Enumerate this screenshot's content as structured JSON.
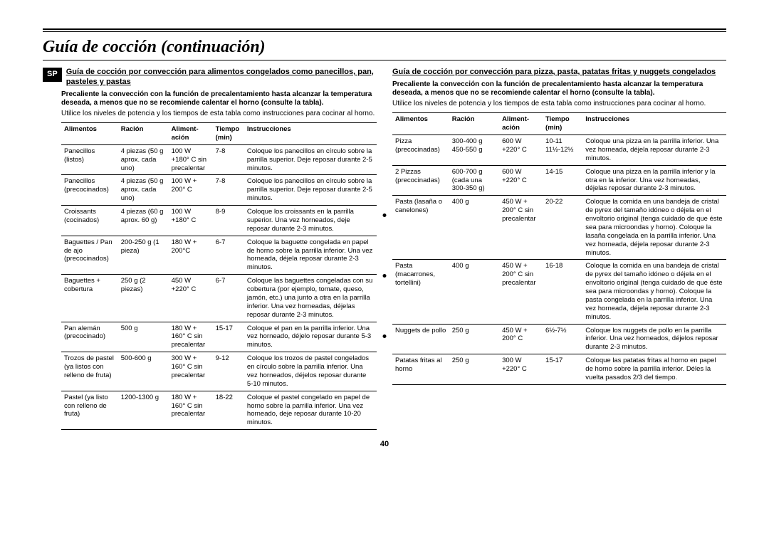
{
  "title": "Guía de cocción (continuación)",
  "spTag": "SP",
  "pageNum": "40",
  "left": {
    "heading": "Guía de cocción por convección para alimentos congelados como panecillos, pan, pasteles y pastas",
    "introBold": "Precaliente la convección con la función de precalentamiento hasta alcanzar la temperatura deseada, a menos que no se recomiende calentar el horno (consulte la tabla).",
    "intro": "Utilice los niveles de potencia y los tiempos de esta tabla como instrucciones para cocinar al horno.",
    "headers": {
      "c1": "Alimentos",
      "c2": "Ración",
      "c3": "Aliment-ación",
      "c4": "Tiempo (min)",
      "c5": "Instrucciones"
    },
    "rows": [
      {
        "c1": "Panecillos (listos)",
        "c2": "4 piezas (50 g aprox. cada uno)",
        "c3": "100 W +180° C sin precalentar",
        "c4": "7-8",
        "c5": "Coloque los panecillos en círculo sobre la parrilla superior. Deje reposar durante 2-5 minutos."
      },
      {
        "c1": "Panecillos (precocinados)",
        "c2": "4 piezas (50 g aprox. cada uno)",
        "c3": "100 W + 200° C",
        "c4": "7-8",
        "c5": "Coloque los panecillos en círculo sobre la parrilla superior. Deje reposar durante 2-5 minutos."
      },
      {
        "c1": "Croissants (cocinados)",
        "c2": "4 piezas (60 g aprox. 60 g)",
        "c3": "100 W +180° C",
        "c4": "8-9",
        "c5": "Coloque los croissants en la parrilla superior. Una vez horneados, deje reposar durante 2-3 minutos."
      },
      {
        "c1": "Baguettes / Pan de ajo (precocinados)",
        "c2": "200-250 g (1 pieza)",
        "c3": "180 W + 200°C",
        "c4": "6-7",
        "c5": "Coloque la baguette congelada en papel de horno sobre la parrilla inferior. Una vez horneada, déjela reposar durante 2-3 minutos."
      },
      {
        "c1": "Baguettes + cobertura",
        "c2": "250 g (2 piezas)",
        "c3": "450 W +220° C",
        "c4": "6-7",
        "c5": "Coloque las baguettes congeladas con su cobertura (por ejemplo, tomate, queso, jamón, etc.) una junto a otra en la parrilla inferior. Una vez horneadas, déjelas reposar durante 2-3 minutos."
      },
      {
        "c1": "Pan alemán (precocinado)",
        "c2": "500 g",
        "c3": "180 W + 160° C sin precalentar",
        "c4": "15-17",
        "c5": "Coloque el pan en la parrilla inferior. Una vez horneado, déjelo reposar durante 5-3 minutos."
      },
      {
        "c1": "Trozos de pastel (ya listos con relleno de fruta)",
        "c2": "500-600 g",
        "c3": "300 W + 160° C sin precalentar",
        "c4": "9-12",
        "c5": "Coloque los trozos de pastel congelados en círculo sobre la parrilla inferior. Una vez horneados, déjelos reposar durante 5-10 minutos."
      },
      {
        "c1": "Pastel (ya listo con relleno de fruta)",
        "c2": "1200-1300 g",
        "c3": "180 W + 160° C sin precalentar",
        "c4": "18-22",
        "c5": "Coloque el pastel congelado en papel de horno sobre la parrilla inferior. Una vez horneado, deje reposar durante 10-20 minutos."
      }
    ]
  },
  "right": {
    "heading": "Guía de cocción por convección para pizza, pasta, patatas fritas y nuggets congelados",
    "introBold": "Precaliente la convección con la función de precalentamiento hasta alcanzar la temperatura deseada, a menos que no se recomiende calentar el horno (consulte la tabla).",
    "intro": "Utilice los niveles de potencia y los tiempos de esta tabla como instrucciones para cocinar al horno.",
    "headers": {
      "c1": "Alimentos",
      "c2": "Ración",
      "c3": "Aliment-ación",
      "c4": "Tiempo (min)",
      "c5": "Instrucciones"
    },
    "rows": [
      {
        "c1": "Pizza (precocinadas)",
        "c2": "300-400 g 450-550 g",
        "c3": "600 W +220° C",
        "c4": "10-11 11½-12½",
        "c5": "Coloque una pizza en la parrilla inferior. Una vez horneada, déjela reposar durante 2-3 minutos."
      },
      {
        "c1": "2 Pizzas (precocinadas)",
        "c2": "600-700 g (cada una 300-350 g)",
        "c3": "600 W +220° C",
        "c4": "14-15",
        "c5": "Coloque una pizza en la parrilla inferior y la otra en la inferior. Una vez horneadas, déjelas reposar durante 2-3 minutos."
      },
      {
        "c1": "Pasta (lasaña o canelones)",
        "c2": "400 g",
        "c3": "450 W + 200° C sin precalentar",
        "c4": "20-22",
        "c5": "Coloque la comida en una bandeja de cristal de pyrex del tamaño idóneo o déjela en el envoltorio original (tenga cuidado de que éste sea para microondas y horno). Coloque la lasaña congelada en la parrilla inferior. Una vez horneada, déjela reposar durante 2-3 minutos."
      },
      {
        "c1": "Pasta (macarrones, tortellini)",
        "c2": "400 g",
        "c3": "450 W + 200° C sin precalentar",
        "c4": "16-18",
        "c5": "Coloque la comida en una bandeja de cristal de pyrex del tamaño idóneo o déjela en el envoltorio original (tenga cuidado de que éste sea para microondas y horno). Coloque la pasta congelada en la parrilla inferior. Una vez horneada, déjela reposar durante 2-3 minutos."
      },
      {
        "c1": "Nuggets de pollo",
        "c2": "250 g",
        "c3": "450 W + 200° C",
        "c4": "6½-7½",
        "c5": "Coloque los nuggets de pollo en la parrilla inferior. Una vez horneados, déjelos reposar durante 2-3 minutos."
      },
      {
        "c1": "Patatas fritas al horno",
        "c2": "250 g",
        "c3": "300 W +220° C",
        "c4": "15-17",
        "c5": "Coloque las patatas fritas al horno en papel de horno sobre la parrilla inferior. Déles la vuelta pasados 2/3 del tiempo."
      }
    ]
  }
}
